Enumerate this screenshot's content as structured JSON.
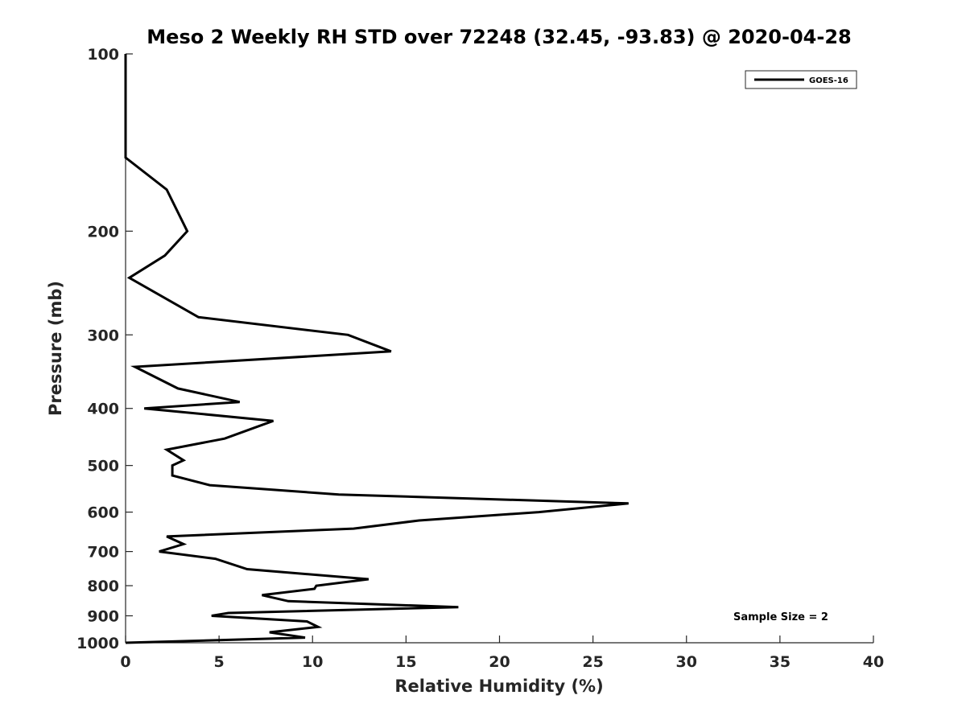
{
  "chart_data": {
    "type": "line",
    "title": "Meso 2 Weekly RH STD over 72248 (32.45, -93.83) @ 2020-04-28",
    "xlabel": "Relative Humidity (%)",
    "ylabel": "Pressure (mb)",
    "xlim": [
      0,
      40
    ],
    "ylim": [
      100,
      1000
    ],
    "y_scale": "log",
    "y_reversed": true,
    "grid": false,
    "legend_placement": "top-right",
    "x_ticks": [
      "0",
      "5",
      "10",
      "15",
      "20",
      "25",
      "30",
      "35",
      "40"
    ],
    "y_ticks": [
      "100",
      "200",
      "300",
      "400",
      "500",
      "600",
      "700",
      "800",
      "900",
      "1000"
    ],
    "series": [
      {
        "name": "GOES-16",
        "color": "#000000",
        "x": [
          0.0,
          0.0,
          0.0,
          2.2,
          3.3,
          2.1,
          0.2,
          3.9,
          11.9,
          14.2,
          0.5,
          2.8,
          6.1,
          1.0,
          7.9,
          5.3,
          2.2,
          3.1,
          2.5,
          2.5,
          4.5,
          11.4,
          26.9,
          22.1,
          15.7,
          12.2,
          2.2,
          3.1,
          1.8,
          4.8,
          6.5,
          13.0,
          10.2,
          10.1,
          7.3,
          8.7,
          17.8,
          5.5,
          4.6,
          9.7,
          10.3,
          7.7,
          9.6,
          5.0,
          0.0
        ],
        "y": [
          100,
          125,
          150,
          170,
          200,
          220,
          240,
          280,
          300,
          320,
          340,
          370,
          390,
          400,
          420,
          450,
          470,
          490,
          500,
          520,
          540,
          560,
          580,
          600,
          620,
          640,
          660,
          680,
          700,
          720,
          750,
          780,
          800,
          810,
          830,
          850,
          870,
          890,
          900,
          920,
          940,
          960,
          980,
          990,
          1000
        ]
      }
    ],
    "annotations": [
      "Sample Size = 2"
    ]
  }
}
